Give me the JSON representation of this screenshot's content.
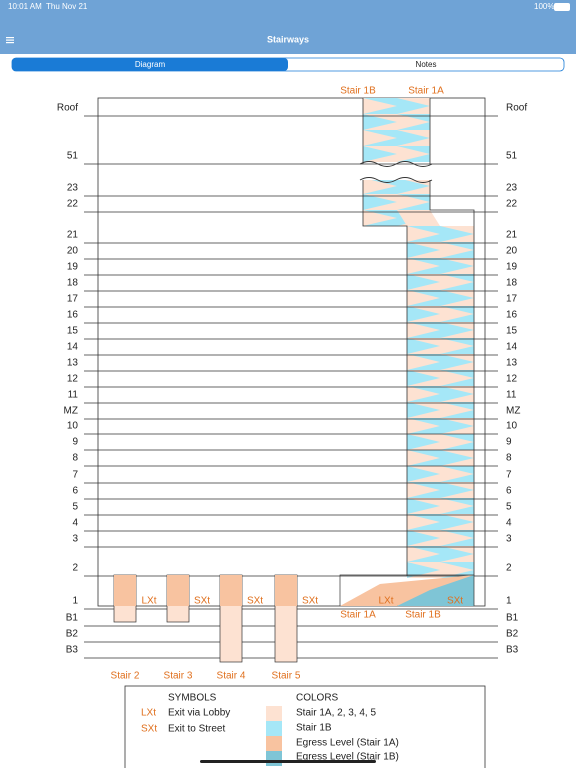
{
  "status_bar": {
    "time": "10:01 AM",
    "date": "Thu Nov 21",
    "battery": "100%"
  },
  "nav": {
    "title": "Stairways"
  },
  "tabs": [
    "Diagram",
    "Notes"
  ],
  "diagram": {
    "floors": [
      "Roof",
      "51",
      "23",
      "22",
      "21",
      "20",
      "19",
      "18",
      "17",
      "16",
      "15",
      "14",
      "13",
      "12",
      "11",
      "MZ",
      "10",
      "9",
      "8",
      "7",
      "6",
      "5",
      "4",
      "3",
      "2",
      "1",
      "B1",
      "B2",
      "B3"
    ],
    "top_stairs": [
      "Stair 1B",
      "Stair 1A"
    ],
    "bottom_stairs": [
      "Stair 2",
      "Stair 3",
      "Stair 4",
      "Stair 5"
    ],
    "exits": [
      "LXt",
      "SXt",
      "SXt",
      "SXt",
      "LXt",
      "SXt"
    ],
    "egress_stairs": [
      "Stair 1A",
      "Stair 1B"
    ]
  },
  "legend": {
    "symbols_title": "SYMBOLS",
    "symbols": [
      {
        "code": "LXt",
        "text": "Exit via Lobby"
      },
      {
        "code": "SXt",
        "text": "Exit to Street"
      }
    ],
    "colors_title": "COLORS",
    "colors": [
      "Stair 1A, 2, 3, 4, 5",
      "Stair 1B",
      "Egress Level (Stair 1A)",
      "Egress Level (Stair 1B)"
    ]
  }
}
